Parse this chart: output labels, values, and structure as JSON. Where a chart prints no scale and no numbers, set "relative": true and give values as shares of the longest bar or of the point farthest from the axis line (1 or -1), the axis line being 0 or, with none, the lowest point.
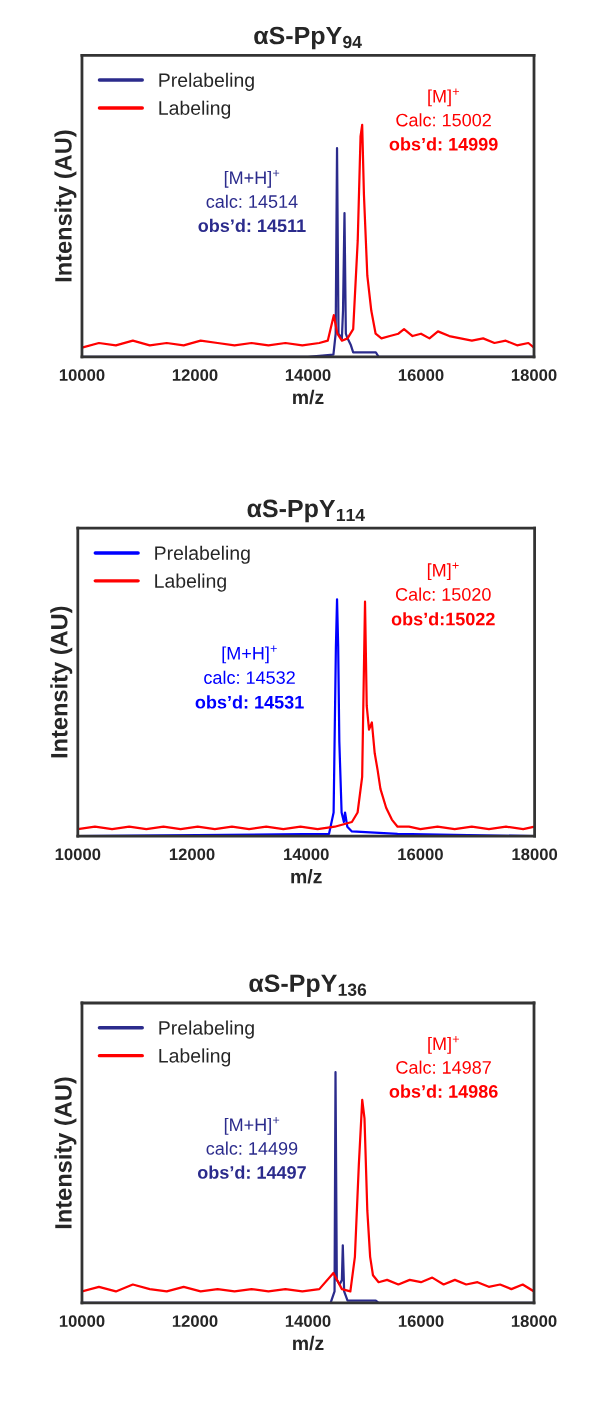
{
  "chart_data": [
    {
      "type": "line",
      "title": "αS-PpY$_{94}$",
      "xlabel": "m/z",
      "ylabel": "Intensity (AU)",
      "relative": true,
      "xlim": [
        10000,
        18000
      ],
      "xticks": [
        10000,
        12000,
        14000,
        16000,
        18000
      ],
      "grid": false,
      "legend": "top left",
      "annotations": [
        "[M+H]$^{+}$",
        "calc: 14514",
        "obs’d: 14511",
        "[M]$^{+}$",
        "Calc: 15002",
        "obs’d: 14999"
      ],
      "series": [
        {
          "name": "Prelabeling",
          "color": "#2b2b8c",
          "x": [
            10000,
            14000,
            14450,
            14490,
            14514,
            14540,
            14600,
            14620,
            14646,
            14670,
            14700,
            14760,
            14800,
            15200,
            15250,
            18000
          ],
          "values": [
            0.0,
            0.0,
            0.01,
            0.1,
            0.9,
            0.1,
            0.08,
            0.2,
            0.62,
            0.1,
            0.08,
            0.05,
            0.02,
            0.02,
            0.0,
            0.0
          ]
        },
        {
          "name": "Labeling",
          "color": "#ff0000",
          "x": [
            10000,
            10300,
            10600,
            10900,
            11200,
            11500,
            11800,
            12100,
            12400,
            12700,
            13000,
            13300,
            13600,
            13900,
            14200,
            14350,
            14457,
            14520,
            14600,
            14700,
            14800,
            14880,
            14930,
            14959,
            14990,
            15050,
            15120,
            15197,
            15300,
            15450,
            15600,
            15700,
            15850,
            16000,
            16150,
            16300,
            16500,
            16700,
            16900,
            17100,
            17300,
            17500,
            17700,
            17900,
            18000
          ],
          "values": [
            0.04,
            0.06,
            0.05,
            0.07,
            0.05,
            0.06,
            0.05,
            0.07,
            0.06,
            0.05,
            0.06,
            0.05,
            0.06,
            0.05,
            0.06,
            0.07,
            0.18,
            0.1,
            0.07,
            0.08,
            0.12,
            0.5,
            0.95,
            1.0,
            0.7,
            0.35,
            0.2,
            0.1,
            0.08,
            0.09,
            0.1,
            0.12,
            0.09,
            0.1,
            0.08,
            0.11,
            0.09,
            0.08,
            0.07,
            0.08,
            0.06,
            0.07,
            0.05,
            0.06,
            0.04
          ]
        }
      ]
    },
    {
      "type": "line",
      "title": "αS-PpY$_{114}$",
      "xlabel": "m/z",
      "ylabel": "Intensity (AU)",
      "relative": true,
      "xlim": [
        10000,
        18000
      ],
      "xticks": [
        10000,
        12000,
        14000,
        16000,
        18000
      ],
      "grid": false,
      "legend": "top left",
      "annotations": [
        "[M+H]$^{+}$",
        "calc: 14532",
        "obs’d: 14531",
        "[M]$^{+}$",
        "Calc: 15020",
        "obs’d:15022"
      ],
      "series": [
        {
          "name": "Prelabeling",
          "color": "#0000ff",
          "x": [
            10000,
            14400,
            14480,
            14520,
            14540,
            14560,
            14580,
            14620,
            14660,
            14680,
            14720,
            14800,
            15600,
            18000
          ],
          "values": [
            0.0,
            0.01,
            0.1,
            0.8,
            1.0,
            0.8,
            0.4,
            0.1,
            0.06,
            0.1,
            0.04,
            0.02,
            0.01,
            0.0
          ]
        },
        {
          "name": "Labeling",
          "color": "#ff0000",
          "x": [
            10000,
            10300,
            10600,
            10900,
            11200,
            11500,
            11800,
            12100,
            12400,
            12700,
            13000,
            13300,
            13600,
            13900,
            14200,
            14500,
            14800,
            14900,
            14980,
            15030,
            15060,
            15100,
            15150,
            15200,
            15250,
            15300,
            15400,
            15500,
            15600,
            15800,
            16000,
            16300,
            16600,
            16900,
            17200,
            17500,
            17800,
            18000
          ],
          "values": [
            0.03,
            0.04,
            0.03,
            0.04,
            0.03,
            0.04,
            0.03,
            0.04,
            0.03,
            0.04,
            0.03,
            0.04,
            0.03,
            0.04,
            0.03,
            0.04,
            0.06,
            0.1,
            0.25,
            0.99,
            0.55,
            0.45,
            0.48,
            0.35,
            0.28,
            0.2,
            0.12,
            0.07,
            0.04,
            0.04,
            0.03,
            0.04,
            0.03,
            0.04,
            0.03,
            0.04,
            0.03,
            0.04
          ]
        }
      ]
    },
    {
      "type": "line",
      "title": "αS-PpY$_{136}$",
      "xlabel": "m/z",
      "ylabel": "Intensity (AU)",
      "relative": true,
      "xlim": [
        10000,
        18000
      ],
      "xticks": [
        10000,
        12000,
        14000,
        16000,
        18000
      ],
      "grid": false,
      "legend": "top left",
      "annotations": [
        "[M+H]$^{+}$",
        "calc: 14499",
        "obs’d: 14497",
        "[M]$^{+}$",
        "Calc: 14987",
        "obs’d: 14986"
      ],
      "series": [
        {
          "name": "Prelabeling",
          "color": "#2b2b8c",
          "x": [
            10000,
            14400,
            14470,
            14487,
            14510,
            14560,
            14600,
            14616,
            14640,
            14700,
            15200,
            15250,
            18000
          ],
          "values": [
            0.0,
            0.0,
            0.05,
            1.0,
            0.1,
            0.08,
            0.1,
            0.25,
            0.05,
            0.01,
            0.01,
            0.0,
            0.0
          ]
        },
        {
          "name": "Labeling",
          "color": "#ff0000",
          "x": [
            10000,
            10300,
            10600,
            10900,
            11200,
            11500,
            11800,
            12100,
            12400,
            12700,
            13000,
            13300,
            13600,
            13900,
            14200,
            14450,
            14600,
            14750,
            14830,
            14900,
            14960,
            15000,
            15050,
            15100,
            15150,
            15250,
            15400,
            15600,
            15800,
            16000,
            16200,
            16400,
            16600,
            16800,
            17000,
            17200,
            17400,
            17600,
            17800,
            18000
          ],
          "values": [
            0.05,
            0.07,
            0.05,
            0.08,
            0.06,
            0.05,
            0.07,
            0.05,
            0.06,
            0.05,
            0.06,
            0.05,
            0.06,
            0.05,
            0.06,
            0.13,
            0.06,
            0.05,
            0.2,
            0.6,
            0.88,
            0.8,
            0.4,
            0.2,
            0.12,
            0.09,
            0.1,
            0.08,
            0.1,
            0.09,
            0.11,
            0.08,
            0.1,
            0.08,
            0.09,
            0.07,
            0.08,
            0.06,
            0.08,
            0.05
          ]
        }
      ]
    }
  ]
}
